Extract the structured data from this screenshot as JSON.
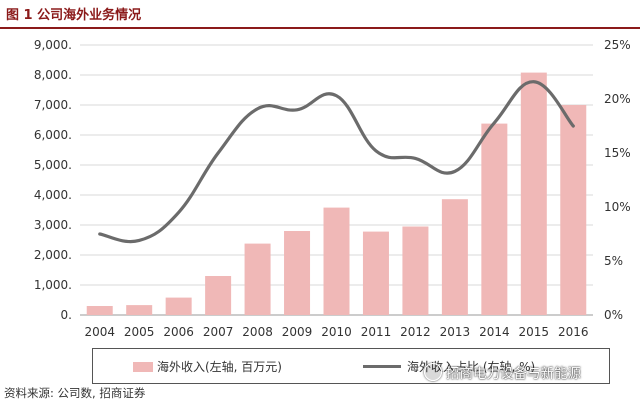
{
  "header": {
    "title": "图 1  公司海外业务情况"
  },
  "legend": {
    "bar_label": "海外收入(左轴, 百万元)",
    "line_label": "海外收入占比 (右轴, %)"
  },
  "footer": {
    "source": "资料来源: 公司数, 招商证券"
  },
  "watermark": {
    "text": "招商电力设备与新能源"
  },
  "colors": {
    "bar": "#f0b8b7",
    "line": "#6b6b6b",
    "title": "#8b1a1a"
  },
  "chart_data": {
    "type": "bar+line",
    "title": "公司海外业务情况",
    "categories": [
      "2004",
      "2005",
      "2006",
      "2007",
      "2008",
      "2009",
      "2010",
      "2011",
      "2012",
      "2013",
      "2014",
      "2015",
      "2016"
    ],
    "series": [
      {
        "name": "海外收入(左轴, 百万元)",
        "type": "bar",
        "axis": "left",
        "values": [
          300,
          330,
          580,
          1300,
          2380,
          2800,
          3580,
          2780,
          2950,
          3860,
          6380,
          8080,
          7000
        ]
      },
      {
        "name": "海外收入占比 (右轴, %)",
        "type": "line",
        "axis": "right",
        "values": [
          7.5,
          6.9,
          9.5,
          15.0,
          19.1,
          19.0,
          20.3,
          15.2,
          14.5,
          13.3,
          17.8,
          21.6,
          17.5
        ]
      }
    ],
    "left_axis": {
      "min": 0,
      "max": 9000,
      "step": 1000,
      "tick_labels": [
        "0.",
        "1,000.",
        "2,000.",
        "3,000.",
        "4,000.",
        "5,000.",
        "6,000.",
        "7,000.",
        "8,000.",
        "9,000."
      ]
    },
    "right_axis": {
      "min": 0,
      "max": 25,
      "step": 5,
      "tick_labels": [
        "0%",
        "5%",
        "10%",
        "15%",
        "20%",
        "25%"
      ]
    },
    "grid": true,
    "legend_position": "bottom"
  }
}
